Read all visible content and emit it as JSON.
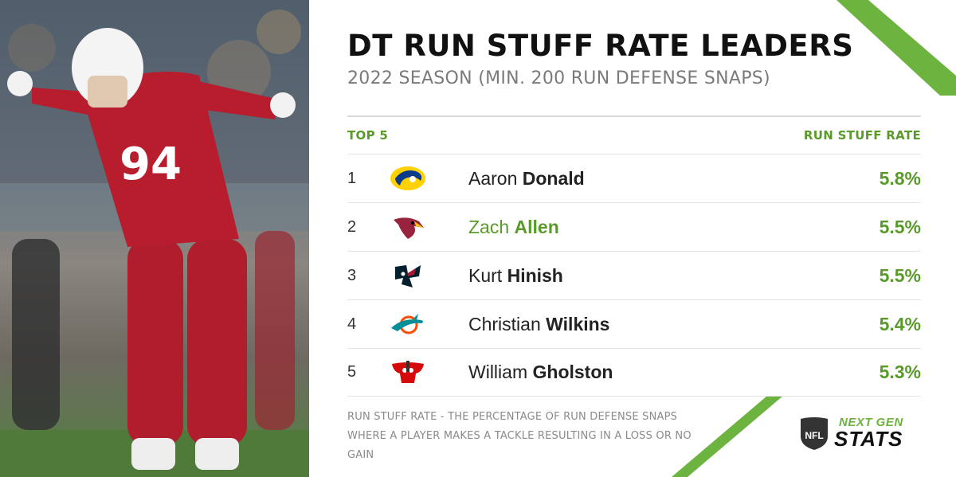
{
  "title": "DT RUN STUFF RATE LEADERS",
  "subtitle": "2022 SEASON (MIN. 200 RUN DEFENSE SNAPS)",
  "table": {
    "left_header": "TOP 5",
    "right_header": "RUN STUFF RATE",
    "rows": [
      {
        "rank": "1",
        "first": "Aaron",
        "last": "Donald",
        "rate": "5.8%",
        "team_icon": "rams-logo-icon"
      },
      {
        "rank": "2",
        "first": "Zach",
        "last": "Allen",
        "rate": "5.5%",
        "team_icon": "cardinals-logo-icon"
      },
      {
        "rank": "3",
        "first": "Kurt",
        "last": "Hinish",
        "rate": "5.5%",
        "team_icon": "texans-logo-icon"
      },
      {
        "rank": "4",
        "first": "Christian",
        "last": "Wilkins",
        "rate": "5.4%",
        "team_icon": "dolphins-logo-icon"
      },
      {
        "rank": "5",
        "first": "William",
        "last": "Gholston",
        "rate": "5.3%",
        "team_icon": "buccaneers-logo-icon"
      }
    ]
  },
  "footnote": "RUN STUFF RATE - THE PERCENTAGE OF RUN DEFENSE SNAPS WHERE A PLAYER MAKES A TACKLE RESULTING IN A LOSS OR NO GAIN",
  "branding": {
    "next": "NEXT GEN",
    "stats": "STATS",
    "shield_text": "NFL"
  },
  "photo": {
    "jersey_number": "94"
  },
  "colors": {
    "accent_green": "#5a9a2a",
    "stripe_green": "#6db33f",
    "title": "#111111"
  }
}
